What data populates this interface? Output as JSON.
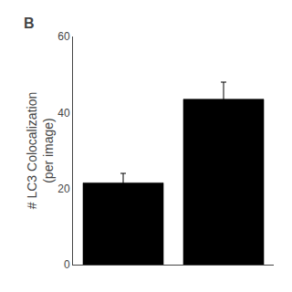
{
  "chart_data": {
    "type": "bar",
    "categories": [
      null,
      null
    ],
    "values": [
      21.5,
      43.5
    ],
    "errors": [
      2.5,
      4.5
    ],
    "colors": [
      "#000000",
      "#000000"
    ],
    "ylabel": "# LC3 Colocalization\n(per image)",
    "ylim": [
      0,
      60
    ],
    "yticks": [
      0,
      20,
      40,
      60
    ],
    "annotations": [
      "B"
    ],
    "grid": false,
    "tick_labels": "y"
  }
}
